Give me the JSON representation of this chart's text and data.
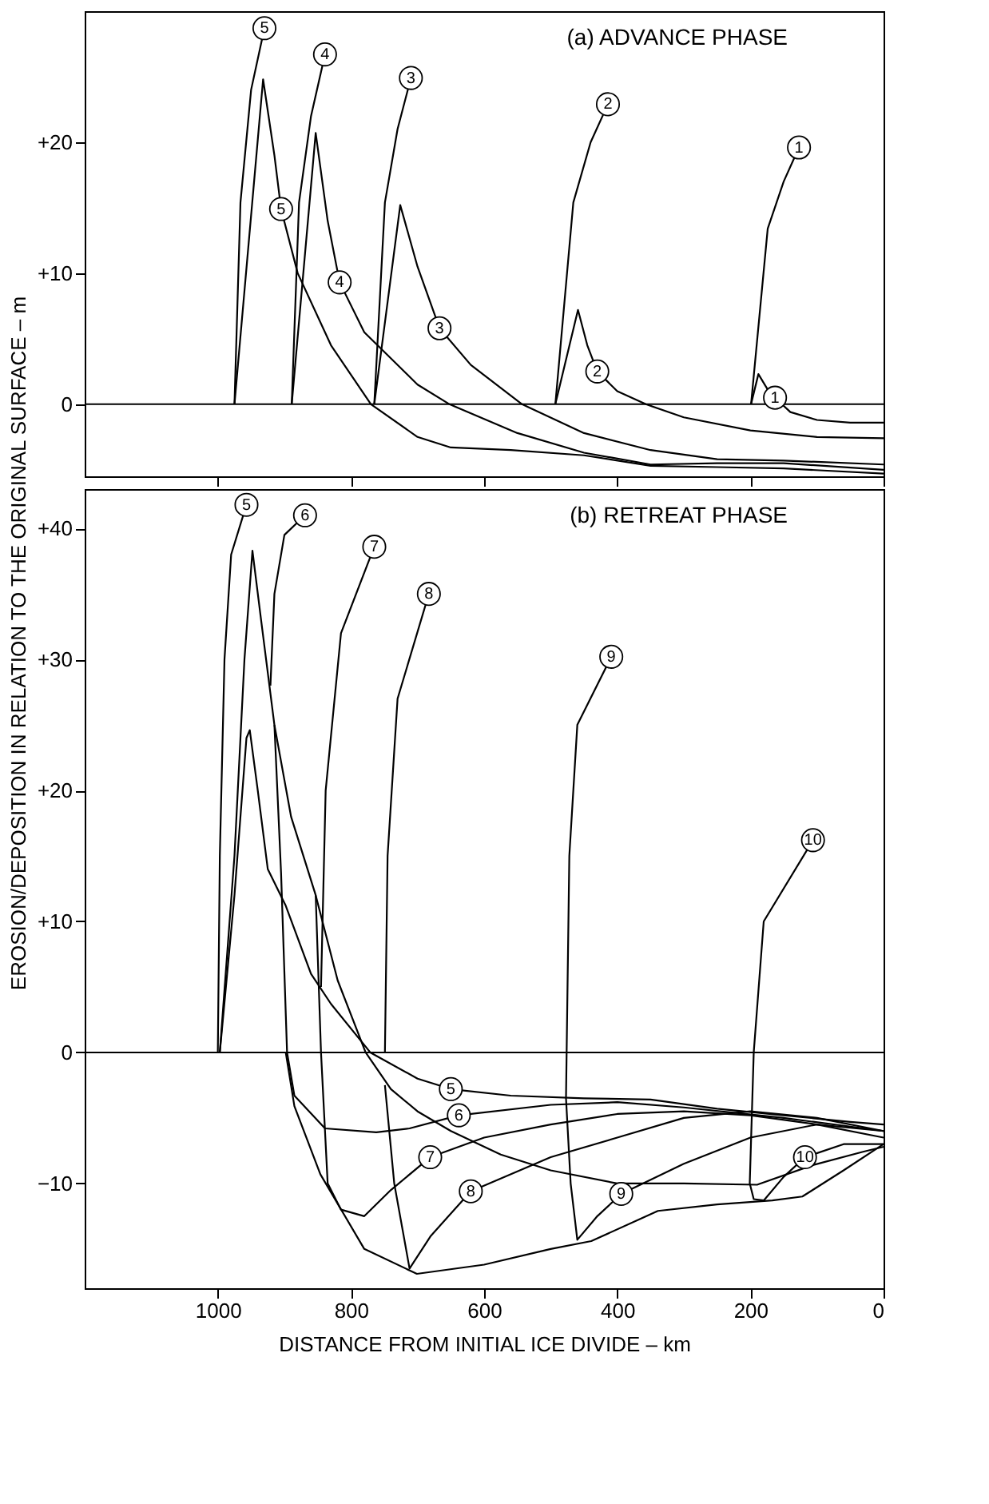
{
  "chart_data": [
    {
      "type": "line",
      "title": "(a) ADVANCE PHASE",
      "ylabel": "EROSION/DEPOSITION IN RELATION TO THE ORIGINAL SURFACE – m",
      "xlim": [
        1200,
        0
      ],
      "xticks": [
        1000,
        800,
        600,
        400,
        200,
        0
      ],
      "ylim": [
        -5.5,
        30
      ],
      "yticks": [
        {
          "value": 0,
          "label": "0"
        },
        {
          "value": 10,
          "label": "+10"
        },
        {
          "value": 20,
          "label": "+20"
        }
      ],
      "tick_labels": "y",
      "ref_lines": [
        {
          "axis": "y",
          "value": 0,
          "color": "#000000"
        }
      ],
      "series": [
        {
          "color": "#000000",
          "x": [
            199,
            188,
            175,
            163,
            140,
            100,
            50,
            0
          ],
          "values": [
            0,
            2.3,
            1.2,
            0.5,
            -0.6,
            -1.2,
            -1.4,
            -1.4
          ]
        },
        {
          "color": "#000000",
          "x": [
            493,
            459,
            445,
            430,
            400,
            357,
            300,
            200,
            100,
            0
          ],
          "values": [
            0,
            7.2,
            4.5,
            2.5,
            1.0,
            0,
            -1,
            -2,
            -2.5,
            -2.6
          ]
        },
        {
          "color": "#000000",
          "x": [
            765,
            726,
            700,
            667,
            620,
            543,
            450,
            350,
            250,
            150,
            0
          ],
          "values": [
            0,
            15.2,
            10.5,
            5.8,
            3.0,
            0,
            -2.2,
            -3.5,
            -4.2,
            -4.3,
            -4.6
          ]
        },
        {
          "color": "#000000",
          "x": [
            889,
            853,
            835,
            817,
            780,
            700,
            652,
            550,
            450,
            350,
            250,
            150,
            0
          ],
          "values": [
            0,
            20.7,
            14,
            9.3,
            5.5,
            1.5,
            0,
            -2.2,
            -3.7,
            -4.6,
            -4.5,
            -4.5,
            -5
          ]
        },
        {
          "color": "#000000",
          "x": [
            975,
            932,
            915,
            905,
            880,
            830,
            770,
            700,
            650,
            560,
            450,
            350,
            250,
            150,
            0
          ],
          "values": [
            0,
            24.8,
            19,
            14.9,
            10,
            4.5,
            0,
            -2.5,
            -3.3,
            -3.5,
            -3.9,
            -4.7,
            -4.8,
            -4.9,
            -5.3
          ]
        },
        {
          "color": "#000000",
          "x": [
            975,
            966,
            950,
            930
          ],
          "values": [
            0,
            15.4,
            24,
            28.7
          ]
        },
        {
          "color": "#000000",
          "x": [
            889,
            878,
            860,
            839
          ],
          "values": [
            0,
            15.4,
            22,
            26.7
          ]
        },
        {
          "color": "#000000",
          "x": [
            765,
            749,
            730,
            710
          ],
          "values": [
            0,
            15.4,
            21,
            24.9
          ]
        },
        {
          "color": "#000000",
          "x": [
            493,
            466,
            440,
            414
          ],
          "values": [
            0,
            15.4,
            20,
            22.9
          ]
        },
        {
          "color": "#000000",
          "x": [
            199,
            174,
            150,
            127
          ],
          "values": [
            0,
            13.4,
            17,
            19.6
          ]
        }
      ],
      "annotations": [
        {
          "text": "5",
          "x": 930,
          "y": 28.7
        },
        {
          "text": "4",
          "x": 839,
          "y": 26.7
        },
        {
          "text": "3",
          "x": 710,
          "y": 24.9
        },
        {
          "text": "2",
          "x": 414,
          "y": 22.9
        },
        {
          "text": "1",
          "x": 127,
          "y": 19.6
        },
        {
          "text": "5",
          "x": 905,
          "y": 14.9
        },
        {
          "text": "4",
          "x": 817,
          "y": 9.3
        },
        {
          "text": "3",
          "x": 667,
          "y": 5.8
        },
        {
          "text": "2",
          "x": 430,
          "y": 2.5
        },
        {
          "text": "1",
          "x": 163,
          "y": 0.5
        }
      ]
    },
    {
      "type": "line",
      "title": "(b) RETREAT PHASE",
      "xlabel": "DISTANCE FROM INITIAL ICE DIVIDE – km",
      "xlim": [
        1200,
        0
      ],
      "xticks": [
        1000,
        800,
        600,
        400,
        200,
        0
      ],
      "ylim": [
        -18,
        43
      ],
      "yticks": [
        {
          "value": -10,
          "label": "−10"
        },
        {
          "value": 0,
          "label": "0"
        },
        {
          "value": 10,
          "label": "+10"
        },
        {
          "value": 20,
          "label": "+20"
        },
        {
          "value": 30,
          "label": "+30"
        },
        {
          "value": 40,
          "label": "+40"
        }
      ],
      "ref_lines": [
        {
          "axis": "y",
          "value": 0,
          "color": "#000000"
        }
      ],
      "series": [
        {
          "color": "#000000",
          "x": [
            898,
            885,
            846,
            780,
            701,
            600,
            500,
            439,
            339,
            250,
            167,
            122,
            60,
            0
          ],
          "values": [
            0,
            -4.1,
            -9.3,
            -15,
            -16.9,
            -16.2,
            -15,
            -14.4,
            -12.1,
            -11.6,
            -11.3,
            -11,
            -9,
            -7
          ]
        },
        {
          "color": "#000000",
          "x": [
            997,
            975,
            957,
            952,
            940,
            925,
            898,
            860,
            830,
            771,
            700,
            650,
            560,
            450,
            350,
            250,
            150,
            50,
            0
          ],
          "values": [
            0,
            12,
            24,
            24.6,
            20,
            14,
            11.2,
            6,
            3.7,
            0,
            -2,
            -2.8,
            -3.3,
            -3.5,
            -3.6,
            -4.3,
            -4.8,
            -5.3,
            -5.5
          ]
        },
        {
          "color": "#000000",
          "x": [
            997,
            975,
            960,
            948,
            935,
            915,
            890,
            853,
            820,
            778,
            740,
            700,
            650,
            575,
            500,
            400,
            300,
            190,
            106,
            32,
            0
          ],
          "values": [
            0,
            15,
            30,
            38.3,
            33,
            25,
            18,
            12,
            5.5,
            0,
            -2.8,
            -4.5,
            -6,
            -7.8,
            -9,
            -10,
            -10,
            -10.1,
            -8.6,
            -7.6,
            -7.2
          ]
        },
        {
          "color": "#000000",
          "x": [
            915,
            905,
            896,
            885,
            839,
            762,
            712,
            638,
            500,
            400,
            300,
            150,
            0
          ],
          "values": [
            25,
            13.7,
            0,
            -3.3,
            -5.8,
            -6.1,
            -5.8,
            -4.8,
            -4,
            -3.8,
            -4.2,
            -5,
            -6
          ]
        },
        {
          "color": "#000000",
          "x": [
            853,
            845,
            835,
            815,
            780,
            740,
            681,
            600,
            500,
            400,
            300,
            200,
            100,
            0
          ],
          "values": [
            12,
            0,
            -10,
            -12,
            -12.5,
            -10.5,
            -8,
            -6.5,
            -5.5,
            -4.7,
            -4.5,
            -4.8,
            -5.5,
            -6.5
          ]
        },
        {
          "color": "#000000",
          "x": [
            749,
            735,
            712,
            680,
            620,
            500,
            400,
            300,
            200,
            100,
            0
          ],
          "values": [
            -2.5,
            -10,
            -16.5,
            -14,
            -10.6,
            -8,
            -6.5,
            -5,
            -4.5,
            -5,
            -6
          ]
        },
        {
          "color": "#000000",
          "x": [
            409,
            460,
            472,
            477,
            470,
            460,
            430,
            394,
            300,
            200,
            100,
            0
          ],
          "values": [
            30.2,
            25,
            15,
            -3.5,
            -10,
            -14.3,
            -12.5,
            -10.8,
            -8.5,
            -6.5,
            -5.5,
            -6
          ]
        },
        {
          "color": "#000000",
          "x": [
            106,
            180,
            195,
            201,
            195,
            180,
            150,
            118,
            60,
            0
          ],
          "values": [
            16.2,
            10,
            0,
            -10,
            -11.2,
            -11.3,
            -9.5,
            -8,
            -7,
            -7
          ]
        },
        {
          "color": "#000000",
          "x": [
            1000,
            997,
            990,
            980,
            957
          ],
          "values": [
            0,
            15,
            30,
            38,
            41.8
          ]
        },
        {
          "color": "#000000",
          "x": [
            921,
            915,
            900,
            869
          ],
          "values": [
            28,
            35,
            39.5,
            41
          ]
        },
        {
          "color": "#000000",
          "x": [
            845,
            838,
            815,
            765
          ],
          "values": [
            5,
            20,
            32,
            38.6
          ]
        },
        {
          "color": "#000000",
          "x": [
            749,
            745,
            730,
            683
          ],
          "values": [
            0,
            15,
            27,
            35
          ]
        }
      ],
      "annotations": [
        {
          "text": "5",
          "x": 957,
          "y": 41.8
        },
        {
          "text": "6",
          "x": 869,
          "y": 41
        },
        {
          "text": "7",
          "x": 765,
          "y": 38.6
        },
        {
          "text": "8",
          "x": 683,
          "y": 35
        },
        {
          "text": "9",
          "x": 409,
          "y": 30.2
        },
        {
          "text": "10",
          "x": 106,
          "y": 16.2
        },
        {
          "text": "5",
          "x": 650,
          "y": -2.8
        },
        {
          "text": "6",
          "x": 638,
          "y": -4.8
        },
        {
          "text": "7",
          "x": 681,
          "y": -8
        },
        {
          "text": "8",
          "x": 620,
          "y": -10.6
        },
        {
          "text": "9",
          "x": 394,
          "y": -10.8
        },
        {
          "text": "10",
          "x": 118,
          "y": -8
        }
      ]
    }
  ]
}
